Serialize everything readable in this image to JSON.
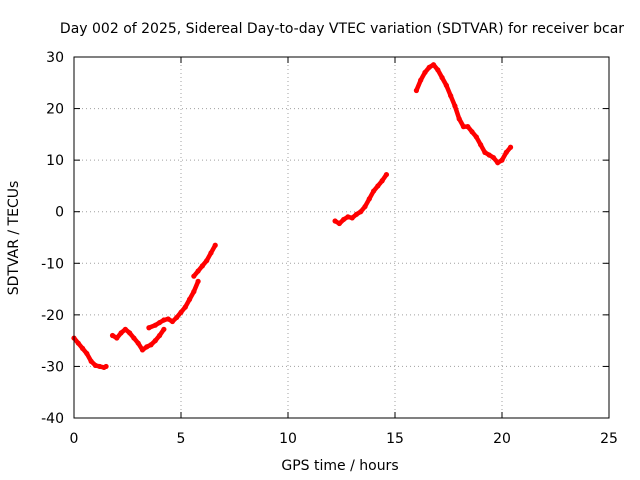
{
  "chart_data": {
    "type": "scatter",
    "title": "Day 002 of 2025, Sidereal Day-to-day VTEC variation (SDTVAR) for receiver bcar",
    "xlabel": "GPS time / hours",
    "ylabel": "SDTVAR / TECUs",
    "xlim": [
      0,
      25
    ],
    "ylim": [
      -40,
      30
    ],
    "xticks": [
      0,
      5,
      10,
      15,
      20,
      25
    ],
    "yticks": [
      -40,
      -30,
      -20,
      -10,
      0,
      10,
      20,
      30
    ],
    "grid": true,
    "legend": "none",
    "color": "#ff0000",
    "series": [
      {
        "x": [
          0.0,
          0.2,
          0.4,
          0.6,
          0.8,
          1.0,
          1.2,
          1.4,
          1.5
        ],
        "y": [
          -24.5,
          -25.5,
          -26.5,
          -27.5,
          -29.0,
          -29.8,
          -30.0,
          -30.2,
          -30.0
        ]
      },
      {
        "x": [
          1.8,
          2.0,
          2.2,
          2.4,
          2.6,
          2.8,
          3.0,
          3.2,
          3.4,
          3.6,
          3.8,
          4.0,
          4.2
        ],
        "y": [
          -24.0,
          -24.5,
          -23.5,
          -22.8,
          -23.5,
          -24.5,
          -25.5,
          -26.8,
          -26.2,
          -25.8,
          -25.0,
          -24.0,
          -22.8
        ]
      },
      {
        "x": [
          3.5,
          3.8,
          4.0,
          4.2,
          4.4,
          4.6,
          4.8,
          5.0,
          5.2,
          5.4,
          5.6,
          5.8
        ],
        "y": [
          -22.5,
          -22.0,
          -21.5,
          -21.0,
          -20.8,
          -21.3,
          -20.5,
          -19.5,
          -18.5,
          -17.0,
          -15.5,
          -13.5
        ]
      },
      {
        "x": [
          5.6,
          5.8,
          6.0,
          6.2,
          6.4,
          6.6
        ],
        "y": [
          -12.5,
          -11.5,
          -10.5,
          -9.5,
          -8.0,
          -6.5
        ]
      },
      {
        "x": [
          12.2,
          12.4,
          12.6,
          12.8,
          13.0,
          13.2,
          13.4,
          13.6,
          13.8,
          14.0,
          14.2,
          14.4,
          14.6
        ],
        "y": [
          -1.8,
          -2.3,
          -1.5,
          -1.0,
          -1.2,
          -0.5,
          0.0,
          1.0,
          2.5,
          4.0,
          5.0,
          6.0,
          7.2
        ]
      },
      {
        "x": [
          16.0,
          16.2,
          16.4,
          16.6,
          16.8,
          17.0,
          17.2,
          17.4,
          17.6,
          17.8,
          18.0,
          18.2,
          18.4,
          18.6,
          18.8,
          19.0,
          19.2,
          19.4,
          19.6,
          19.8,
          20.0,
          20.2,
          20.4
        ],
        "y": [
          23.5,
          25.5,
          27.0,
          28.0,
          28.5,
          27.5,
          26.0,
          24.5,
          22.5,
          20.5,
          18.0,
          16.5,
          16.5,
          15.5,
          14.5,
          13.0,
          11.5,
          11.0,
          10.5,
          9.5,
          10.0,
          11.5,
          12.5
        ]
      }
    ]
  }
}
